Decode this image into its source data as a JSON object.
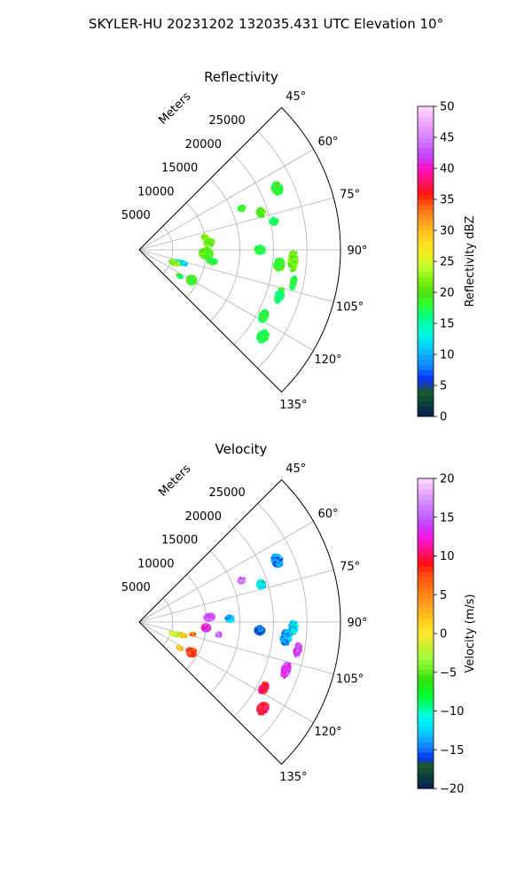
{
  "figure": {
    "suptitle": "SKYLER-HU  20231202  132035.431 UTC Elevation 10°"
  },
  "chart_data": [
    {
      "type": "heatmap",
      "projection": "polar-sector",
      "title": "Reflectivity",
      "theta_range_deg": [
        45,
        135
      ],
      "theta_ticks": [
        "45°",
        "60°",
        "75°",
        "90°",
        "105°",
        "120°",
        "135°"
      ],
      "theta_tick_values": [
        45,
        60,
        75,
        90,
        105,
        120,
        135
      ],
      "r_range_m": [
        0,
        30000
      ],
      "r_label": "Meters",
      "r_ticks": [
        "5000",
        "10000",
        "15000",
        "20000",
        "25000"
      ],
      "r_tick_values": [
        5000,
        10000,
        15000,
        20000,
        25000
      ],
      "grid": true,
      "colorbar": {
        "label": "Reflectivity dBZ",
        "min": 0,
        "max": 50,
        "ticks": [
          "0",
          "5",
          "10",
          "15",
          "20",
          "25",
          "30",
          "35",
          "40",
          "45",
          "50"
        ],
        "tick_values": [
          0,
          5,
          10,
          15,
          20,
          25,
          30,
          35,
          40,
          45,
          50
        ]
      },
      "echoes": [
        {
          "theta": 93,
          "r": 10000,
          "dt": 9,
          "dr": 1900,
          "value": 20
        },
        {
          "theta": 84,
          "r": 10500,
          "dt": 6,
          "dr": 1400,
          "value": 21
        },
        {
          "theta": 79,
          "r": 10000,
          "dt": 4,
          "dr": 900,
          "value": 22
        },
        {
          "theta": 99,
          "r": 11000,
          "dt": 4,
          "dr": 1400,
          "value": 18
        },
        {
          "theta": 107,
          "r": 6500,
          "dt": 5,
          "dr": 1800,
          "value": 12
        },
        {
          "theta": 110,
          "r": 5600,
          "dt": 6,
          "dr": 1500,
          "value": 22
        },
        {
          "theta": 120,
          "r": 9000,
          "dt": 8,
          "dr": 1400,
          "value": 19
        },
        {
          "theta": 123,
          "r": 7200,
          "dt": 3,
          "dr": 900,
          "value": 18
        },
        {
          "theta": 68,
          "r": 16500,
          "dt": 3,
          "dr": 1000,
          "value": 19
        },
        {
          "theta": 66,
          "r": 22500,
          "dt": 5,
          "dr": 1500,
          "value": 18
        },
        {
          "theta": 73,
          "r": 19000,
          "dt": 4,
          "dr": 1200,
          "value": 20
        },
        {
          "theta": 78,
          "r": 20500,
          "dt": 3,
          "dr": 1200,
          "value": 17
        },
        {
          "theta": 90,
          "r": 18000,
          "dt": 4,
          "dr": 1500,
          "value": 18
        },
        {
          "theta": 96,
          "r": 21000,
          "dt": 5,
          "dr": 1500,
          "value": 19
        },
        {
          "theta": 94,
          "r": 23000,
          "dt": 8,
          "dr": 1300,
          "value": 21
        },
        {
          "theta": 102,
          "r": 23500,
          "dt": 5,
          "dr": 800,
          "value": 18
        },
        {
          "theta": 108,
          "r": 22000,
          "dt": 6,
          "dr": 1200,
          "value": 17
        },
        {
          "theta": 118,
          "r": 21000,
          "dt": 5,
          "dr": 1200,
          "value": 18
        },
        {
          "theta": 125,
          "r": 22500,
          "dt": 5,
          "dr": 1500,
          "value": 17
        }
      ]
    },
    {
      "type": "heatmap",
      "projection": "polar-sector",
      "title": "Velocity",
      "theta_range_deg": [
        45,
        135
      ],
      "theta_ticks": [
        "45°",
        "60°",
        "75°",
        "90°",
        "105°",
        "120°",
        "135°"
      ],
      "theta_tick_values": [
        45,
        60,
        75,
        90,
        105,
        120,
        135
      ],
      "r_range_m": [
        0,
        30000
      ],
      "r_label": "Meters",
      "r_ticks": [
        "5000",
        "10000",
        "15000",
        "20000",
        "25000"
      ],
      "r_tick_values": [
        5000,
        10000,
        15000,
        20000,
        25000
      ],
      "grid": true,
      "colorbar": {
        "label": "Velocity (m/s)",
        "min": -20,
        "max": 20,
        "ticks": [
          "−20",
          "−15",
          "−10",
          "−5",
          "0",
          "5",
          "10",
          "15",
          "20"
        ],
        "tick_values": [
          -20,
          -15,
          -10,
          -5,
          0,
          5,
          10,
          15,
          20
        ]
      },
      "echoes": [
        {
          "theta": 86,
          "r": 10500,
          "dt": 6,
          "dr": 1500,
          "value": 15
        },
        {
          "theta": 88,
          "r": 13500,
          "dt": 4,
          "dr": 1200,
          "value": -13
        },
        {
          "theta": 95,
          "r": 10000,
          "dt": 6,
          "dr": 1200,
          "value": 13
        },
        {
          "theta": 99,
          "r": 12000,
          "dt": 3,
          "dr": 900,
          "value": 15
        },
        {
          "theta": 107,
          "r": 6500,
          "dt": 5,
          "dr": 1800,
          "value": 1
        },
        {
          "theta": 109,
          "r": 5500,
          "dt": 5,
          "dr": 1400,
          "value": -2
        },
        {
          "theta": 103,
          "r": 8200,
          "dt": 3,
          "dr": 700,
          "value": 6
        },
        {
          "theta": 120,
          "r": 9000,
          "dt": 8,
          "dr": 1400,
          "value": 8
        },
        {
          "theta": 123,
          "r": 7200,
          "dt": 3,
          "dr": 900,
          "value": 2
        },
        {
          "theta": 68,
          "r": 16500,
          "dt": 3,
          "dr": 1000,
          "value": 16
        },
        {
          "theta": 66,
          "r": 22500,
          "dt": 5,
          "dr": 1500,
          "value": -14
        },
        {
          "theta": 73,
          "r": 19000,
          "dt": 4,
          "dr": 1200,
          "value": -12
        },
        {
          "theta": 94,
          "r": 18000,
          "dt": 4,
          "dr": 1500,
          "value": -15
        },
        {
          "theta": 96,
          "r": 22000,
          "dt": 6,
          "dr": 1600,
          "value": -14
        },
        {
          "theta": 92,
          "r": 23000,
          "dt": 5,
          "dr": 1200,
          "value": -12
        },
        {
          "theta": 100,
          "r": 24000,
          "dt": 5,
          "dr": 1000,
          "value": 15
        },
        {
          "theta": 108,
          "r": 23000,
          "dt": 6,
          "dr": 1200,
          "value": 14
        },
        {
          "theta": 118,
          "r": 21000,
          "dt": 5,
          "dr": 1200,
          "value": 10
        },
        {
          "theta": 125,
          "r": 22500,
          "dt": 5,
          "dr": 1500,
          "value": 10
        }
      ]
    }
  ]
}
